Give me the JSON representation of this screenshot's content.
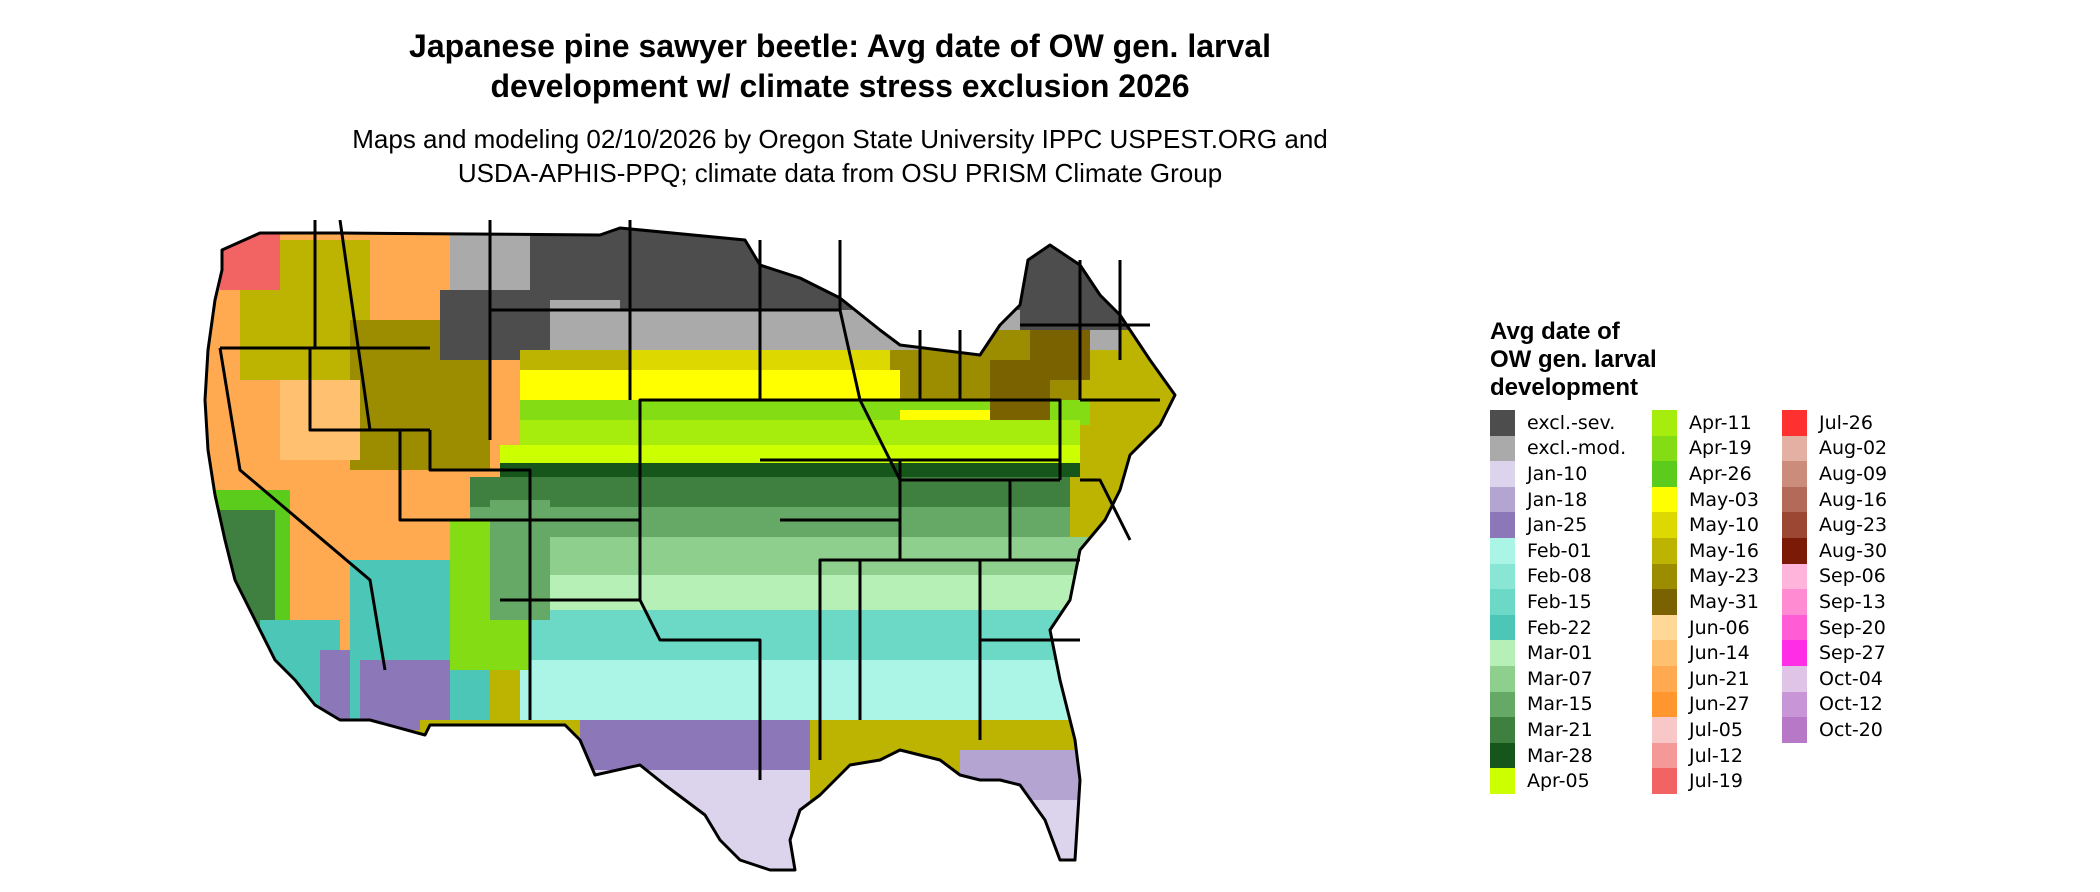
{
  "title": {
    "line1": "Japanese pine sawyer beetle: Avg date of OW gen. larval",
    "line2": "development w/ climate stress exclusion 2026"
  },
  "subtitle": {
    "line1": "Maps and modeling 02/10/2026 by Oregon State University IPPC USPEST.ORG and",
    "line2": "USDA-APHIS-PPQ; climate data from OSU PRISM Climate Group"
  },
  "legend": {
    "title_lines": [
      "Avg date of",
      "OW gen. larval",
      "development"
    ],
    "items": [
      {
        "label": "excl.-sev.",
        "color": "#4d4d4d"
      },
      {
        "label": "excl.-mod.",
        "color": "#aaaaaa"
      },
      {
        "label": "Jan-10",
        "color": "#dcd4ec"
      },
      {
        "label": "Jan-18",
        "color": "#b4a4d2"
      },
      {
        "label": "Jan-25",
        "color": "#8c78b8"
      },
      {
        "label": "Feb-01",
        "color": "#aaf5e6"
      },
      {
        "label": "Feb-08",
        "color": "#8ae6d4"
      },
      {
        "label": "Feb-15",
        "color": "#6cd8c6"
      },
      {
        "label": "Feb-22",
        "color": "#4cc6b6"
      },
      {
        "label": "Mar-01",
        "color": "#b6f0b6"
      },
      {
        "label": "Mar-07",
        "color": "#8ecf8e"
      },
      {
        "label": "Mar-15",
        "color": "#66a866"
      },
      {
        "label": "Mar-21",
        "color": "#3f7f3f"
      },
      {
        "label": "Mar-28",
        "color": "#16561a"
      },
      {
        "label": "Apr-05",
        "color": "#ccff00"
      },
      {
        "label": "Apr-11",
        "color": "#a6ec0c"
      },
      {
        "label": "Apr-19",
        "color": "#84dc14"
      },
      {
        "label": "Apr-26",
        "color": "#5ccc1c"
      },
      {
        "label": "May-03",
        "color": "#ffff00"
      },
      {
        "label": "May-10",
        "color": "#dcd800"
      },
      {
        "label": "May-16",
        "color": "#bcb400"
      },
      {
        "label": "May-23",
        "color": "#9c8c00"
      },
      {
        "label": "May-31",
        "color": "#7a6200"
      },
      {
        "label": "Jun-06",
        "color": "#ffd898"
      },
      {
        "label": "Jun-14",
        "color": "#ffc070"
      },
      {
        "label": "Jun-21",
        "color": "#ffaa50"
      },
      {
        "label": "Jun-27",
        "color": "#ff962e"
      },
      {
        "label": "Jul-05",
        "color": "#f8c8c8"
      },
      {
        "label": "Jul-12",
        "color": "#f49898"
      },
      {
        "label": "Jul-19",
        "color": "#f26464"
      },
      {
        "label": "Jul-26",
        "color": "#ff3030"
      },
      {
        "label": "Aug-02",
        "color": "#e4b0a4"
      },
      {
        "label": "Aug-09",
        "color": "#cc8c7c"
      },
      {
        "label": "Aug-16",
        "color": "#b46a58"
      },
      {
        "label": "Aug-23",
        "color": "#9c4634"
      },
      {
        "label": "Aug-30",
        "color": "#7c1a08"
      },
      {
        "label": "Sep-06",
        "color": "#ffb4dc"
      },
      {
        "label": "Sep-13",
        "color": "#ff8cd2"
      },
      {
        "label": "Sep-20",
        "color": "#ff5cd6"
      },
      {
        "label": "Sep-27",
        "color": "#ff2ee6"
      },
      {
        "label": "Oct-04",
        "color": "#e0c4e8"
      },
      {
        "label": "Oct-12",
        "color": "#c896d6"
      },
      {
        "label": "Oct-20",
        "color": "#b878c8"
      }
    ]
  }
}
